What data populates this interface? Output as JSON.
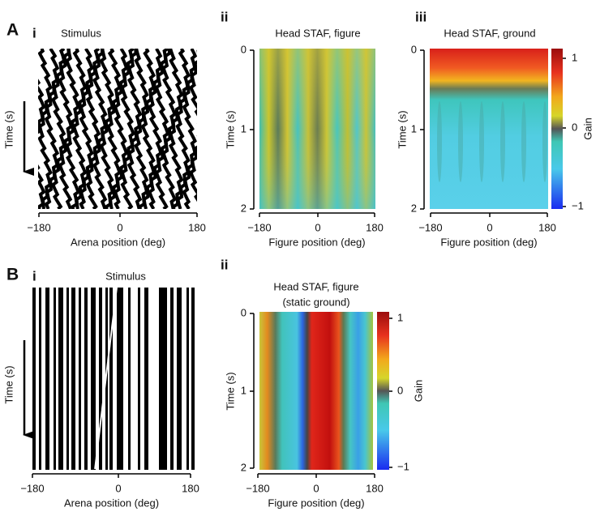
{
  "panels": [
    {
      "label": "A",
      "sub": "i",
      "title": "Stimulus",
      "ylabel": "Time (s)",
      "xlabel": "Arena position (deg)",
      "xticks": [
        "−180",
        "0",
        "180"
      ]
    },
    {
      "sub": "ii",
      "title": "Head STAF, figure",
      "ylabel": "Time (s)",
      "xlabel": "Figure position (deg)",
      "xticks": [
        "−180",
        "0",
        "180"
      ],
      "yticks": [
        "0",
        "1",
        "2"
      ]
    },
    {
      "sub": "iii",
      "title": "Head STAF, ground",
      "ylabel": "Time (s)",
      "xlabel": "Figure position (deg)",
      "xticks": [
        "−180",
        "0",
        "180"
      ],
      "yticks": [
        "0",
        "1",
        "2"
      ],
      "colorbar": {
        "label": "Gain",
        "ticks": [
          "1",
          "0",
          "−1"
        ]
      }
    },
    {
      "label": "B",
      "sub": "i",
      "title": "Stimulus",
      "ylabel": "Time (s)",
      "xlabel": "Arena position (deg)",
      "xticks": [
        "−180",
        "0",
        "180"
      ]
    },
    {
      "sub": "ii",
      "title": "Head STAF, figure",
      "title2": "(static ground)",
      "ylabel": "Time (s)",
      "xlabel": "Figure position (deg)",
      "xticks": [
        "−180",
        "0",
        "180"
      ],
      "yticks": [
        "0",
        "1",
        "2"
      ],
      "colorbar": {
        "label": "Gain",
        "ticks": [
          "1",
          "0",
          "−1"
        ]
      }
    }
  ]
}
